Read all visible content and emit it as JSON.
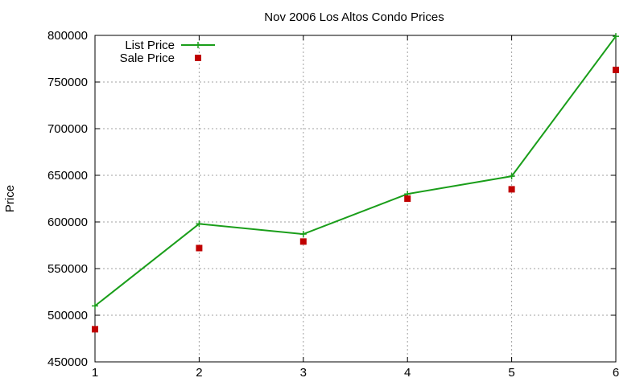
{
  "chart_data": {
    "type": "line",
    "title": "Nov 2006 Los Altos Condo Prices",
    "xlabel": "",
    "ylabel": "Price",
    "x": [
      1,
      2,
      3,
      4,
      5,
      6
    ],
    "xlim": [
      1,
      6
    ],
    "ylim": [
      450000,
      800000
    ],
    "xticks": [
      "1",
      "2",
      "3",
      "4",
      "5",
      "6"
    ],
    "yticks": [
      "450000",
      "500000",
      "550000",
      "600000",
      "650000",
      "700000",
      "750000",
      "800000"
    ],
    "grid": true,
    "legend_position": "top-left",
    "series": [
      {
        "name": "List Price",
        "style": "line+cross",
        "color": "#1a9e1a",
        "values": [
          510000,
          598000,
          587000,
          630000,
          649000,
          799000
        ]
      },
      {
        "name": "Sale Price",
        "style": "square-points",
        "color": "#c00000",
        "values": [
          485000,
          572000,
          579000,
          625000,
          635000,
          763000
        ]
      }
    ]
  }
}
